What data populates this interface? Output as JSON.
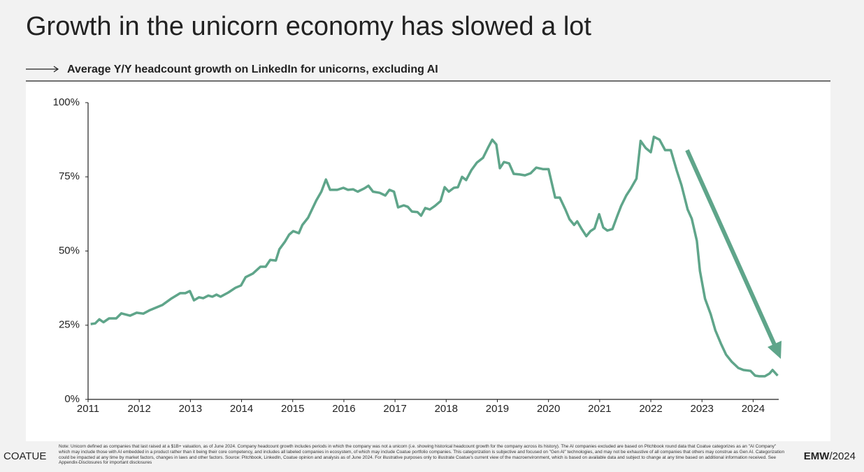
{
  "chart_data": {
    "type": "line",
    "title": "Growth in the unicorn economy has slowed a lot",
    "subtitle": "Average Y/Y headcount growth on LinkedIn for unicorns, excluding AI",
    "color": "#5fa58a",
    "x": [
      2011.05,
      2011.14,
      2011.22,
      2011.3,
      2011.41,
      2011.55,
      2011.65,
      2011.82,
      2011.95,
      2012.08,
      2012.21,
      2012.45,
      2012.62,
      2012.8,
      2012.9,
      2012.99,
      2013.07,
      2013.17,
      2013.25,
      2013.35,
      2013.43,
      2013.51,
      2013.59,
      2013.74,
      2013.88,
      2013.99,
      2014.08,
      2014.22,
      2014.37,
      2014.47,
      2014.56,
      2014.67,
      2014.74,
      2014.85,
      2014.93,
      2015.01,
      2015.12,
      2015.19,
      2015.3,
      2015.46,
      2015.56,
      2015.65,
      2015.73,
      2015.87,
      2015.99,
      2016.08,
      2016.18,
      2016.27,
      2016.4,
      2016.48,
      2016.57,
      2016.7,
      2016.81,
      2016.89,
      2016.98,
      2017.06,
      2017.17,
      2017.25,
      2017.33,
      2017.44,
      2017.51,
      2017.59,
      2017.68,
      2017.78,
      2017.89,
      2017.97,
      2018.05,
      2018.15,
      2018.23,
      2018.31,
      2018.39,
      2018.49,
      2018.6,
      2018.72,
      2018.83,
      2018.9,
      2018.98,
      2019.05,
      2019.13,
      2019.23,
      2019.32,
      2019.44,
      2019.54,
      2019.65,
      2019.76,
      2019.89,
      2020.0,
      2020.13,
      2020.22,
      2020.33,
      2020.41,
      2020.5,
      2020.56,
      2020.65,
      2020.74,
      2020.82,
      2020.9,
      2020.99,
      2021.07,
      2021.15,
      2021.25,
      2021.34,
      2021.42,
      2021.52,
      2021.61,
      2021.72,
      2021.8,
      2021.9,
      2022.0,
      2022.06,
      2022.17,
      2022.28,
      2022.39,
      2022.51,
      2022.6,
      2022.72,
      2022.8,
      2022.9,
      2022.96,
      2023.06,
      2023.17,
      2023.26,
      2023.37,
      2023.47,
      2023.58,
      2023.71,
      2023.81,
      2023.95,
      2024.04,
      2024.12,
      2024.23,
      2024.32,
      2024.38,
      2024.48
    ],
    "values": [
      25.4,
      25.6,
      27,
      26,
      27.3,
      27.3,
      29,
      28.2,
      29.2,
      28.9,
      30.1,
      31.8,
      33.9,
      35.8,
      35.8,
      36.5,
      33.4,
      34.4,
      34.1,
      35,
      34.6,
      35.3,
      34.6,
      36,
      37.6,
      38.4,
      41.2,
      42.4,
      44.7,
      44.7,
      47,
      46.8,
      50.6,
      53.2,
      55.5,
      56.7,
      56,
      58.8,
      61.2,
      67,
      70,
      74.1,
      70.6,
      70.6,
      71.3,
      70.6,
      70.8,
      70,
      71.1,
      72,
      70,
      69.6,
      68.7,
      70.6,
      70,
      64.7,
      65.4,
      64.9,
      63.3,
      63.1,
      61.9,
      64.5,
      64,
      65.2,
      66.8,
      71.5,
      70,
      71.3,
      71.5,
      75,
      73.9,
      77.2,
      79.8,
      81.4,
      85.2,
      87.5,
      85.9,
      77.9,
      80,
      79.5,
      76,
      75.8,
      75.5,
      76.2,
      78.1,
      77.6,
      77.6,
      68,
      68,
      64,
      60.7,
      58.8,
      60,
      57.4,
      55,
      56.7,
      57.6,
      62.4,
      57.9,
      56.9,
      57.4,
      61.6,
      65.2,
      68.7,
      71.1,
      74.4,
      87.1,
      84.7,
      83.3,
      88.5,
      87.5,
      84,
      84,
      76.9,
      72.2,
      64,
      60.9,
      53.4,
      43.3,
      33.9,
      28.7,
      23.3,
      18.8,
      15.1,
      12.7,
      10.6,
      9.9,
      9.6,
      8,
      7.8,
      7.8,
      8.7,
      9.9,
      8
    ],
    "xlim": [
      2011,
      2024.5
    ],
    "xticks": [
      2011,
      2012,
      2013,
      2014,
      2015,
      2016,
      2017,
      2018,
      2019,
      2020,
      2021,
      2022,
      2023,
      2024
    ],
    "ylim": [
      0,
      100
    ],
    "yticks": [
      {
        "value": 0,
        "label": "0%"
      },
      {
        "value": 25,
        "label": "25%"
      },
      {
        "value": 50,
        "label": "50%"
      },
      {
        "value": 75,
        "label": "75%"
      },
      {
        "value": 100,
        "label": "100%"
      }
    ],
    "grid": false
  },
  "footer": {
    "brand": "COATUE",
    "note": "Note: Unicorn defined as companies that last raised at a $1B+ valuation, as of June 2024. Company headcount growth includes periods in which the company was not a unicorn (i.e. showing historical headcount growth for the company across its history). The AI companies excluded are based on Pitchbook round data that Coatue categorizes as an \"AI Company\" which may include those with AI embedded in a product rather than it being their core competency, and includes all labeled companies in ecosystem, of which may include Coatue portfolio companies. This categorization is subjective and focused on \"Gen AI\" technologies, and may not be exhaustive of all companies that others may construe as Gen AI. Categorization could be impacted at any time by market factors, changes in laws and other factors. Source: Pitchbook, LinkedIn, Coatue opinion and analysis as of June 2024. For illustrative purposes only to illustrate Coatue's current view of the macroenvironment, which is based on available data and subject to change at any time based on additional information received. See Appendix-Disclosures for important disclosures",
    "event_name": "EMW",
    "event_year": "/2024"
  }
}
